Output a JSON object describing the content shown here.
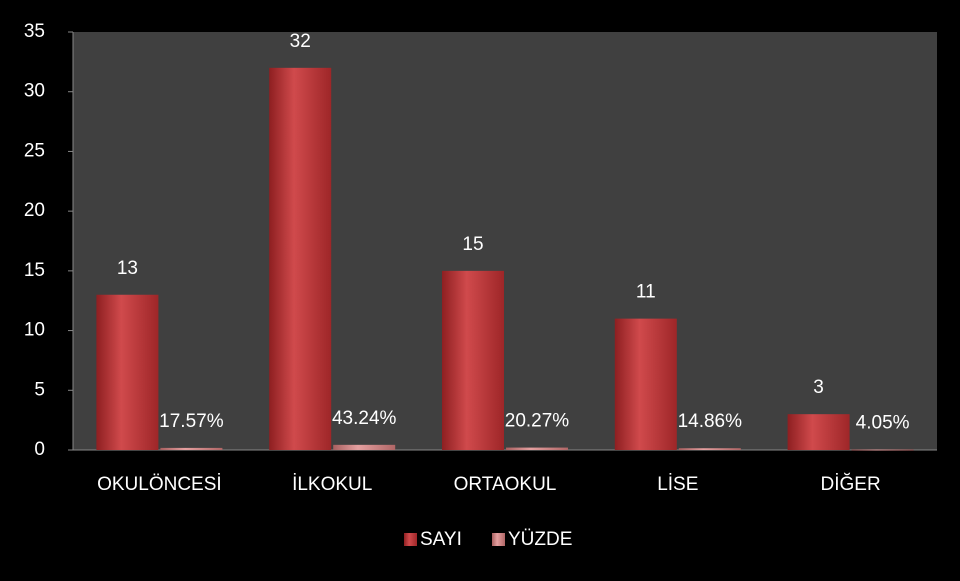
{
  "chart_data": {
    "type": "bar",
    "categories": [
      "OKULÖNCESİ",
      "İLKOKUL",
      "ORTAOKUL",
      "LİSE",
      "DİĞER"
    ],
    "series": [
      {
        "name": "SAYI",
        "color": "#c0393b",
        "values": [
          13,
          32,
          15,
          11,
          3
        ]
      },
      {
        "name": "YÜZDE",
        "color": "#d98a8a",
        "values": [
          0.1757,
          0.4324,
          0.2027,
          0.1486,
          0.0405
        ],
        "value_labels": [
          "17.57%",
          "43.24%",
          "20.27%",
          "14.86%",
          "4.05%"
        ]
      }
    ],
    "ylim": [
      0,
      35
    ],
    "yticks": [
      0,
      5,
      10,
      15,
      20,
      25,
      30,
      35
    ],
    "grid": false,
    "legend": "bottom"
  }
}
